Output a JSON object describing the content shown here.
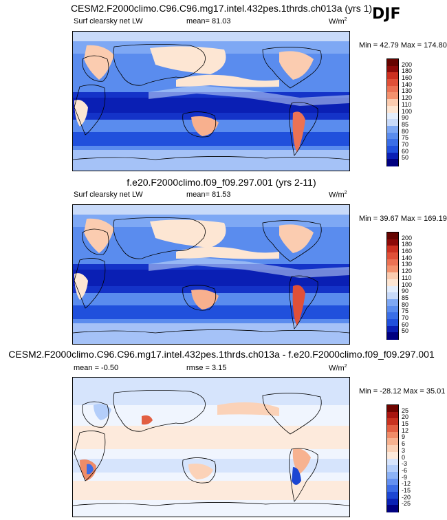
{
  "season": "DJF",
  "colors": {
    "abs_palette": [
      "#000080",
      "#0a1fb4",
      "#1433c8",
      "#2050dc",
      "#3a6ee6",
      "#5a8cee",
      "#7ea8f4",
      "#a5c2f7",
      "#c8daf9",
      "#e4eefc",
      "#fde6d3",
      "#fbccb0",
      "#f8b08e",
      "#f4926e",
      "#ec7254",
      "#e05038",
      "#cc3020",
      "#b01812",
      "#8c0a08",
      "#650400"
    ],
    "diff_palette": [
      "#000080",
      "#0a22b4",
      "#1c46d2",
      "#3c6ce6",
      "#6490f0",
      "#8cb2f6",
      "#b4cefa",
      "#d6e4fc",
      "#f0f5fe",
      "#fdeadc",
      "#fbd2b8",
      "#f7b290",
      "#f08c68",
      "#e25f42",
      "#c8321f",
      "#a81610",
      "#6e0400"
    ]
  },
  "chart_data": [
    {
      "type": "heatmap",
      "title": "CESM2.F2000climo.C96.C96.mg17.intel.432pes.1thrds.ch013a (yrs 1)",
      "left_label": "Surf clearsky net LW",
      "center_label": "mean=  81.03",
      "units": "W/m",
      "units_sup": "2",
      "stats": "Min =  42.79 Max = 174.80",
      "colorbar_levels": [
        "200",
        "180",
        "160",
        "140",
        "130",
        "120",
        "110",
        "100",
        "90",
        "85",
        "80",
        "75",
        "70",
        "60",
        "50"
      ]
    },
    {
      "type": "heatmap",
      "title": "f.e20.F2000climo.f09_f09.297.001 (yrs 2-11)",
      "left_label": "Surf clearsky net LW",
      "center_label": "mean=  81.53",
      "units": "W/m",
      "units_sup": "2",
      "stats": "Min =  39.67 Max = 169.19",
      "colorbar_levels": [
        "200",
        "180",
        "160",
        "140",
        "130",
        "120",
        "110",
        "100",
        "90",
        "85",
        "80",
        "75",
        "70",
        "60",
        "50"
      ]
    },
    {
      "type": "heatmap",
      "title": "CESM2.F2000climo.C96.C96.mg17.intel.432pes.1thrds.ch013a - f.e20.F2000climo.f09_f09.297.001",
      "left_label": "mean =  -0.50",
      "center_label": "rmse =   3.15",
      "units": "W/m",
      "units_sup": "2",
      "stats": "Min = -28.12 Max =  35.01",
      "colorbar_levels": [
        "25",
        "20",
        "15",
        "12",
        "9",
        "6",
        "3",
        "0",
        "-3",
        "-6",
        "-9",
        "-12",
        "-15",
        "-20",
        "-25"
      ]
    }
  ]
}
